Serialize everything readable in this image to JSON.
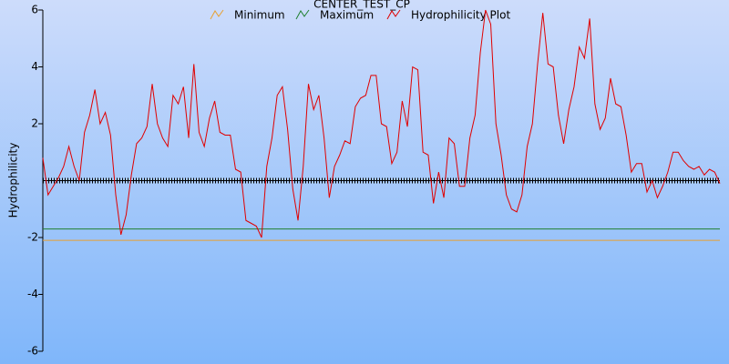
{
  "chart_data": {
    "type": "line",
    "title": "CENTER_TEST_CP",
    "y_label": "Hydrophilicity",
    "ylim": [
      -6,
      6
    ],
    "yticks": [
      -6,
      -4,
      -2,
      2,
      4,
      6
    ],
    "series": [
      {
        "name": "Minimum",
        "color": "#e8a030",
        "value": -2.1
      },
      {
        "name": "Maximum",
        "color": "#208030",
        "value": -1.7
      },
      {
        "name": "Hydrophilicity Plot",
        "color": "#e00000",
        "values": [
          0.8,
          -0.5,
          -0.2,
          0.1,
          0.5,
          1.2,
          0.5,
          0,
          1.7,
          2.3,
          3.2,
          2.0,
          2.4,
          1.6,
          -0.5,
          -1.9,
          -1.2,
          0.2,
          1.3,
          1.5,
          1.9,
          3.4,
          2.0,
          1.5,
          1.2,
          3.0,
          2.7,
          3.3,
          1.5,
          4.1,
          1.7,
          1.2,
          2.2,
          2.8,
          1.7,
          1.6,
          1.6,
          0.4,
          0.3,
          -1.4,
          -1.5,
          -1.6,
          -2.0,
          0.5,
          1.5,
          3.0,
          3.3,
          1.8,
          -0.3,
          -1.4,
          0.5,
          3.4,
          2.5,
          3.0,
          1.5,
          -0.6,
          0.5,
          0.9,
          1.4,
          1.3,
          2.6,
          2.9,
          3.0,
          3.7,
          3.7,
          2.0,
          1.9,
          0.6,
          1.0,
          2.8,
          1.9,
          4.0,
          3.9,
          1.0,
          0.9,
          -0.8,
          0.3,
          -0.6,
          1.5,
          1.3,
          -0.2,
          -0.2,
          1.5,
          2.3,
          4.5,
          6.0,
          5.5,
          2.0,
          0.9,
          -0.5,
          -1.0,
          -1.1,
          -0.5,
          1.2,
          2.0,
          4.1,
          5.9,
          4.1,
          4.0,
          2.3,
          1.3,
          2.5,
          3.3,
          4.7,
          4.3,
          5.7,
          2.7,
          1.8,
          2.2,
          3.6,
          2.7,
          2.6,
          1.6,
          0.3,
          0.6,
          0.6,
          -0.4,
          0.0,
          -0.6,
          -0.2,
          0.3,
          1.0,
          1.0,
          0.7,
          0.5,
          0.4,
          0.5,
          0.2,
          0.4,
          0.3,
          -0.1
        ]
      }
    ]
  }
}
